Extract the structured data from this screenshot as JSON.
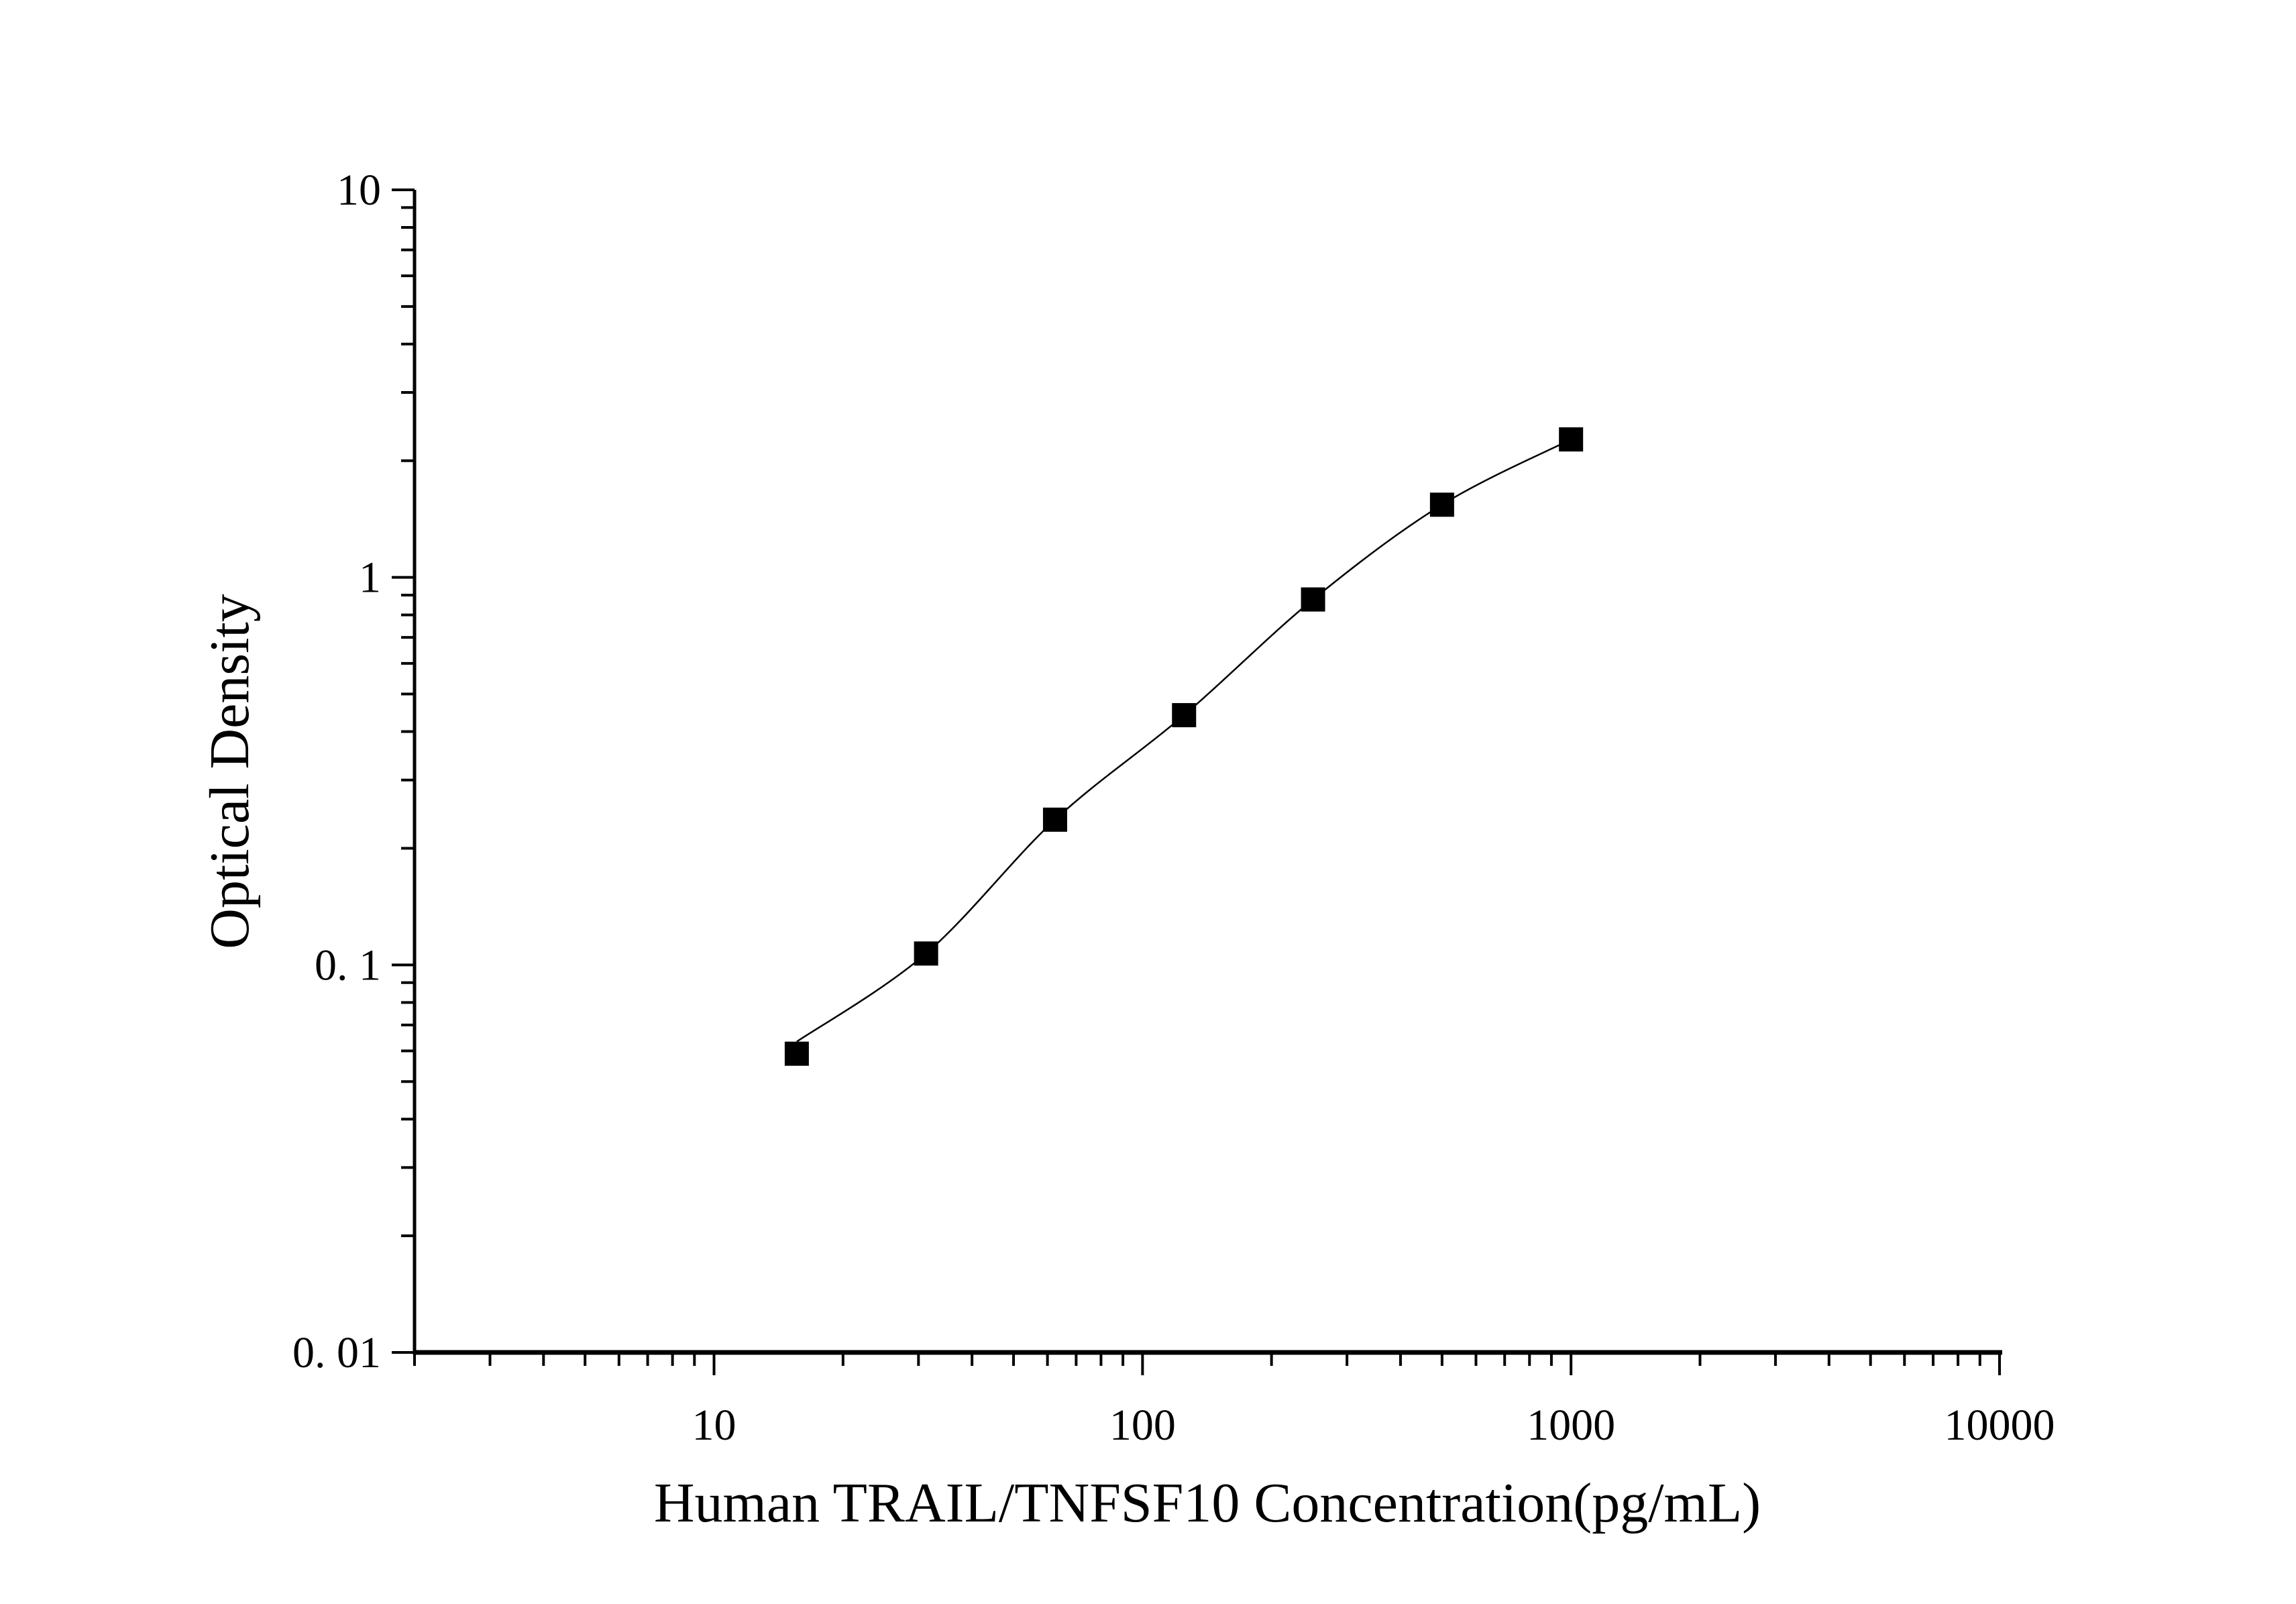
{
  "chart_data": {
    "type": "scatter",
    "title": "",
    "xlabel": "Human TRAIL/TNFSF10 Concentration(pg/mL)",
    "ylabel": "Optical Density",
    "x_scale": "log",
    "y_scale": "log",
    "xlim": [
      2,
      10000
    ],
    "ylim": [
      0.01,
      10
    ],
    "x_ticks": [
      10,
      100,
      1000,
      10000
    ],
    "x_tick_labels": [
      "10",
      "100",
      "1000",
      "10000"
    ],
    "y_ticks": [
      0.01,
      0.1,
      1,
      10
    ],
    "y_tick_labels": [
      "0. 01",
      "0. 1",
      "1",
      "10"
    ],
    "grid": false,
    "marker": "square",
    "fit_line": true,
    "colors": {
      "marker": "#000000",
      "line": "#000000"
    },
    "series": [
      {
        "x": [
          15.6,
          31.25,
          62.5,
          125,
          250,
          500,
          1000
        ],
        "y": [
          0.059,
          0.107,
          0.237,
          0.441,
          0.877,
          1.54,
          2.27
        ]
      }
    ]
  }
}
